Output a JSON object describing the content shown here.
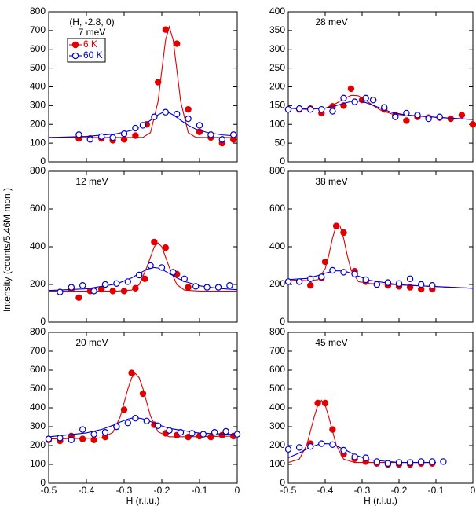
{
  "ylabel": "Intensity (counts/5.46M mon.)",
  "chart_data": [
    {
      "type": "scatter",
      "annotations": [
        "(H, -2.8, 0)",
        "7 meV"
      ],
      "legend": true,
      "xlim": [
        -0.5,
        0
      ],
      "xticks": [
        -0.5,
        -0.4,
        -0.3,
        -0.2,
        -0.1,
        0
      ],
      "ylim": [
        0,
        800
      ],
      "yticks": [
        0,
        100,
        200,
        300,
        400,
        500,
        600,
        700,
        800
      ],
      "fit_x": [
        -0.5,
        -0.4,
        -0.32,
        -0.28,
        -0.25,
        -0.23,
        -0.21,
        -0.2,
        -0.19,
        -0.18,
        -0.17,
        -0.16,
        -0.15,
        -0.13,
        -0.11,
        -0.08,
        -0.04,
        0
      ],
      "series": [
        {
          "name": "6 K",
          "color": "#e00000",
          "marker": "filled",
          "x": [
            -0.42,
            -0.39,
            -0.36,
            -0.33,
            -0.3,
            -0.27,
            -0.24,
            -0.21,
            -0.19,
            -0.16,
            -0.13,
            -0.1,
            -0.07,
            -0.04,
            -0.01
          ],
          "values": [
            125,
            125,
            125,
            115,
            120,
            140,
            200,
            425,
            705,
            630,
            280,
            160,
            130,
            100,
            120
          ],
          "fit_values": [
            130,
            130,
            130,
            130,
            131,
            156,
            322,
            488,
            650,
            720,
            650,
            488,
            322,
            156,
            131,
            130,
            130,
            130
          ]
        },
        {
          "name": "60 K",
          "color": "#0000cc",
          "marker": "open",
          "x": [
            -0.42,
            -0.39,
            -0.36,
            -0.33,
            -0.3,
            -0.27,
            -0.25,
            -0.22,
            -0.19,
            -0.16,
            -0.13,
            -0.1,
            -0.07,
            -0.04,
            -0.01
          ],
          "values": [
            145,
            120,
            135,
            130,
            150,
            180,
            195,
            240,
            265,
            255,
            230,
            195,
            145,
            120,
            145
          ],
          "fit_values": [
            130,
            136,
            150,
            168,
            195,
            222,
            251,
            261,
            265,
            261,
            251,
            237,
            222,
            195,
            175,
            157,
            144,
            138
          ]
        }
      ]
    },
    {
      "type": "scatter",
      "annotations": [
        "28 meV"
      ],
      "xlim": [
        -0.5,
        0
      ],
      "xticks": [
        -0.5,
        -0.4,
        -0.3,
        -0.2,
        -0.1,
        0
      ],
      "ylim": [
        0,
        400
      ],
      "yticks": [
        0,
        50,
        100,
        150,
        200,
        250,
        300,
        350,
        400
      ],
      "fit_x": [
        -0.5,
        -0.45,
        -0.4,
        -0.37,
        -0.35,
        -0.33,
        -0.32,
        -0.31,
        -0.29,
        -0.27,
        -0.25,
        -0.22,
        -0.18,
        -0.1,
        0
      ],
      "series": [
        {
          "color": "#e00000",
          "marker": "filled",
          "x": [
            -0.5,
            -0.47,
            -0.44,
            -0.41,
            -0.38,
            -0.35,
            -0.33,
            -0.3,
            -0.27,
            -0.24,
            -0.21,
            -0.18,
            -0.15,
            -0.12,
            -0.09,
            -0.06,
            -0.03,
            0
          ],
          "values": [
            140,
            140,
            142,
            130,
            148,
            150,
            195,
            165,
            165,
            140,
            125,
            110,
            120,
            118,
            118,
            115,
            125,
            100
          ],
          "fit_values": [
            143,
            140,
            143,
            156,
            168,
            177,
            177,
            176,
            164,
            150,
            138,
            128,
            124,
            119,
            113
          ]
        },
        {
          "color": "#0000cc",
          "marker": "open",
          "x": [
            -0.5,
            -0.47,
            -0.44,
            -0.41,
            -0.38,
            -0.35,
            -0.32,
            -0.29,
            -0.27,
            -0.24,
            -0.21,
            -0.18,
            -0.15,
            -0.12,
            -0.09
          ],
          "values": [
            140,
            142,
            140,
            140,
            135,
            170,
            160,
            170,
            165,
            145,
            120,
            130,
            125,
            115,
            120
          ],
          "fit_values": [
            143,
            141,
            143,
            150,
            156,
            161,
            161,
            162,
            158,
            151,
            143,
            132,
            125,
            119,
            113
          ]
        }
      ]
    },
    {
      "type": "scatter",
      "annotations": [
        "12 meV"
      ],
      "xlim": [
        -0.5,
        0
      ],
      "xticks": [
        -0.5,
        -0.4,
        -0.3,
        -0.2,
        -0.1,
        0
      ],
      "ylim": [
        0,
        800
      ],
      "yticks": [
        0,
        200,
        400,
        600,
        800
      ],
      "fit_x": [
        -0.5,
        -0.4,
        -0.32,
        -0.28,
        -0.26,
        -0.24,
        -0.22,
        -0.21,
        -0.2,
        -0.18,
        -0.16,
        -0.14,
        -0.1,
        -0.05,
        0
      ],
      "series": [
        {
          "color": "#e00000",
          "marker": "filled",
          "x": [
            -0.44,
            -0.42,
            -0.39,
            -0.36,
            -0.33,
            -0.3,
            -0.27,
            -0.245,
            -0.22,
            -0.19,
            -0.16,
            -0.13
          ],
          "values": [
            175,
            130,
            165,
            175,
            165,
            165,
            180,
            230,
            425,
            395,
            255,
            185
          ],
          "fit_values": [
            165,
            165,
            165,
            170,
            199,
            290,
            400,
            420,
            400,
            290,
            199,
            170,
            165,
            165,
            165
          ]
        },
        {
          "color": "#0000cc",
          "marker": "open",
          "x": [
            -0.47,
            -0.44,
            -0.41,
            -0.38,
            -0.35,
            -0.32,
            -0.29,
            -0.26,
            -0.23,
            -0.2,
            -0.17,
            -0.14,
            -0.11,
            -0.08,
            -0.05,
            -0.02
          ],
          "values": [
            160,
            185,
            195,
            165,
            200,
            205,
            215,
            250,
            300,
            290,
            265,
            230,
            190,
            185,
            185,
            195
          ],
          "fit_values": [
            168,
            177,
            203,
            235,
            258,
            280,
            290,
            287,
            280,
            258,
            235,
            216,
            193,
            179,
            172
          ]
        }
      ]
    },
    {
      "type": "scatter",
      "annotations": [
        "38 meV"
      ],
      "xlim": [
        -0.5,
        0
      ],
      "xticks": [
        -0.5,
        -0.4,
        -0.3,
        -0.2,
        -0.1,
        0
      ],
      "ylim": [
        0,
        800
      ],
      "yticks": [
        0,
        200,
        400,
        600,
        800
      ],
      "fit_x": [
        -0.5,
        -0.45,
        -0.42,
        -0.4,
        -0.39,
        -0.38,
        -0.37,
        -0.36,
        -0.35,
        -0.34,
        -0.33,
        -0.31,
        -0.28,
        -0.2,
        -0.1,
        0
      ],
      "series": [
        {
          "color": "#e00000",
          "marker": "filled",
          "x": [
            -0.5,
            -0.44,
            -0.41,
            -0.4,
            -0.37,
            -0.35,
            -0.32,
            -0.29,
            -0.26,
            -0.23,
            -0.2,
            -0.17,
            -0.14,
            -0.11
          ],
          "values": [
            215,
            195,
            235,
            320,
            510,
            475,
            270,
            215,
            200,
            195,
            190,
            185,
            175,
            175
          ],
          "fit_values": [
            225,
            220,
            225,
            283,
            357,
            447,
            513,
            512,
            444,
            353,
            277,
            215,
            205,
            198,
            189,
            180
          ]
        },
        {
          "color": "#0000cc",
          "marker": "open",
          "x": [
            -0.5,
            -0.47,
            -0.44,
            -0.41,
            -0.38,
            -0.35,
            -0.32,
            -0.29,
            -0.26,
            -0.23,
            -0.2,
            -0.17,
            -0.14,
            -0.11
          ],
          "values": [
            215,
            215,
            230,
            240,
            275,
            265,
            255,
            225,
            200,
            210,
            205,
            230,
            200,
            195
          ],
          "fit_values": [
            226,
            232,
            247,
            260,
            265,
            269,
            272,
            272,
            270,
            266,
            260,
            244,
            222,
            198,
            189,
            180
          ]
        }
      ]
    },
    {
      "type": "scatter",
      "annotations": [
        "20 meV"
      ],
      "xlabel": "H (r.l.u.)",
      "xlim": [
        -0.5,
        0
      ],
      "xticks": [
        -0.5,
        -0.4,
        -0.3,
        -0.2,
        -0.1,
        0
      ],
      "ylim": [
        0,
        800
      ],
      "yticks": [
        0,
        100,
        200,
        300,
        400,
        500,
        600,
        700,
        800
      ],
      "fit_x": [
        -0.5,
        -0.4,
        -0.36,
        -0.33,
        -0.31,
        -0.29,
        -0.28,
        -0.27,
        -0.26,
        -0.25,
        -0.23,
        -0.21,
        -0.18,
        -0.1,
        0
      ],
      "series": [
        {
          "color": "#e00000",
          "marker": "filled",
          "x": [
            -0.5,
            -0.47,
            -0.44,
            -0.41,
            -0.38,
            -0.35,
            -0.32,
            -0.3,
            -0.28,
            -0.25,
            -0.22,
            -0.19,
            -0.16,
            -0.13,
            -0.1,
            -0.07,
            -0.04,
            -0.01
          ],
          "values": [
            230,
            225,
            250,
            235,
            230,
            245,
            300,
            390,
            585,
            475,
            310,
            265,
            255,
            245,
            250,
            245,
            255,
            250
          ],
          "fit_values": [
            235,
            238,
            240,
            269,
            354,
            500,
            559,
            582,
            559,
            502,
            356,
            273,
            246,
            247,
            250
          ]
        },
        {
          "color": "#0000cc",
          "marker": "open",
          "x": [
            -0.5,
            -0.47,
            -0.44,
            -0.41,
            -0.38,
            -0.35,
            -0.32,
            -0.29,
            -0.27,
            -0.24,
            -0.21,
            -0.18,
            -0.15,
            -0.12,
            -0.09,
            -0.06,
            -0.03,
            0
          ],
          "values": [
            235,
            240,
            230,
            285,
            260,
            270,
            300,
            320,
            345,
            330,
            305,
            280,
            270,
            265,
            260,
            270,
            275,
            260
          ],
          "fit_values": [
            246,
            267,
            285,
            307,
            325,
            340,
            345,
            347,
            345,
            341,
            327,
            311,
            291,
            266,
            258
          ]
        }
      ]
    },
    {
      "type": "scatter",
      "annotations": [
        "45 meV"
      ],
      "xlabel": "H (r.l.u.)",
      "xlim": [
        -0.5,
        0
      ],
      "xticks": [
        -0.5,
        -0.4,
        -0.3,
        -0.2,
        -0.1,
        0
      ],
      "ylim": [
        0,
        800
      ],
      "yticks": [
        0,
        100,
        200,
        300,
        400,
        500,
        600,
        700,
        800
      ],
      "fit_x": [
        -0.5,
        -0.47,
        -0.45,
        -0.43,
        -0.42,
        -0.41,
        -0.4,
        -0.39,
        -0.37,
        -0.35,
        -0.32,
        -0.28,
        -0.2,
        -0.1
      ],
      "series": [
        {
          "color": "#e00000",
          "marker": "filled",
          "x": [
            -0.44,
            -0.42,
            -0.4,
            -0.38,
            -0.35,
            -0.32,
            -0.29,
            -0.26,
            -0.23,
            -0.2,
            -0.17,
            -0.14,
            -0.11
          ],
          "values": [
            210,
            425,
            425,
            285,
            155,
            130,
            115,
            105,
            100,
            100,
            100,
            105,
            105
          ],
          "fit_values": [
            110,
            128,
            202,
            350,
            414,
            440,
            414,
            350,
            202,
            128,
            110,
            110,
            110,
            110
          ]
        },
        {
          "color": "#0000cc",
          "marker": "open",
          "x": [
            -0.5,
            -0.47,
            -0.44,
            -0.41,
            -0.38,
            -0.35,
            -0.32,
            -0.29,
            -0.26,
            -0.23,
            -0.2,
            -0.17,
            -0.14,
            -0.11,
            -0.08
          ],
          "values": [
            180,
            190,
            195,
            210,
            205,
            175,
            140,
            135,
            115,
            105,
            110,
            110,
            115,
            115,
            115
          ],
          "fit_values": [
            135,
            161,
            181,
            198,
            205,
            209,
            210,
            209,
            198,
            181,
            151,
            124,
            110,
            110
          ]
        }
      ]
    }
  ]
}
